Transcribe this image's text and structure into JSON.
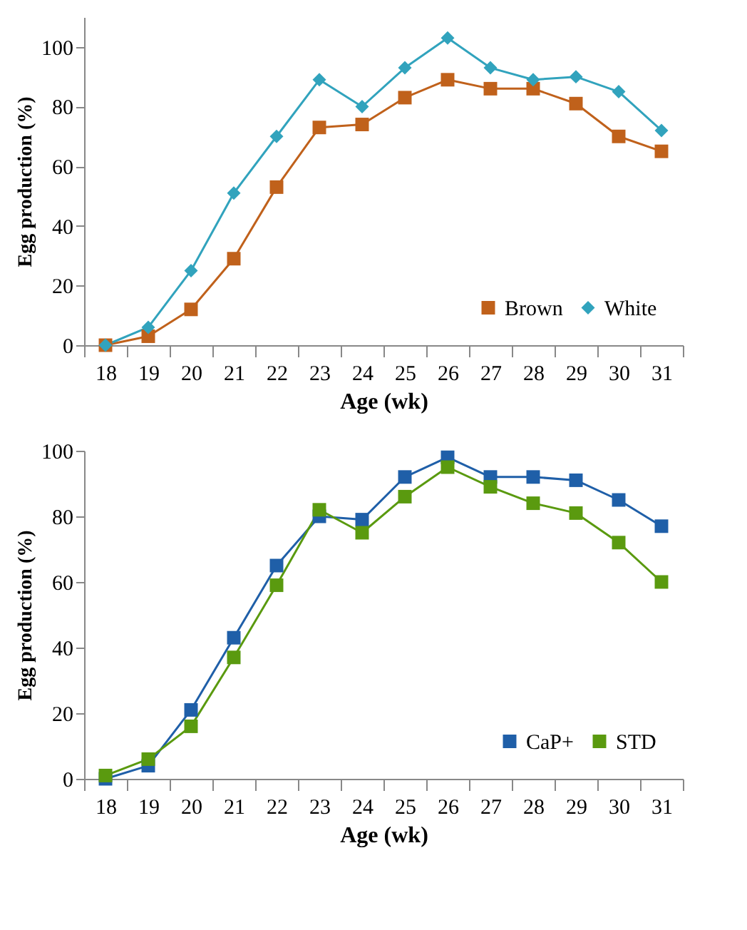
{
  "chart_data": [
    {
      "type": "line",
      "xlabel": "Age (wk)",
      "ylabel": "Egg production (%)",
      "categories": [
        "18",
        "19",
        "20",
        "21",
        "22",
        "23",
        "24",
        "25",
        "26",
        "27",
        "28",
        "29",
        "30",
        "31"
      ],
      "ylim": [
        0,
        110
      ],
      "yticks": [
        0,
        20,
        40,
        60,
        80,
        100
      ],
      "grid": false,
      "legend": "bottom right",
      "series": [
        {
          "name": "Brown",
          "color": "#c0611b",
          "marker": "square",
          "values": [
            0,
            3,
            12,
            29,
            53,
            73,
            74,
            83,
            89,
            86,
            86,
            81,
            70,
            65
          ]
        },
        {
          "name": "White",
          "color": "#31a3bd",
          "marker": "diamond",
          "values": [
            0,
            6,
            25,
            51,
            70,
            89,
            80,
            93,
            103,
            93,
            89,
            90,
            85,
            72
          ]
        }
      ]
    },
    {
      "type": "line",
      "xlabel": "Age (wk)",
      "ylabel": "Egg production (%)",
      "categories": [
        "18",
        "19",
        "20",
        "21",
        "22",
        "23",
        "24",
        "25",
        "26",
        "27",
        "28",
        "29",
        "30",
        "31"
      ],
      "ylim": [
        0,
        100
      ],
      "yticks": [
        0,
        20,
        40,
        60,
        80,
        100
      ],
      "grid": false,
      "legend": "bottom right",
      "series": [
        {
          "name": "CaP+",
          "color": "#1f5fa8",
          "marker": "square",
          "values": [
            0,
            4,
            21,
            43,
            65,
            80,
            79,
            92,
            98,
            92,
            92,
            91,
            85,
            77
          ]
        },
        {
          "name": "STD",
          "color": "#5a9a0f",
          "marker": "square",
          "values": [
            1,
            6,
            16,
            37,
            59,
            82,
            75,
            86,
            95,
            89,
            84,
            81,
            72,
            60
          ]
        }
      ]
    }
  ]
}
